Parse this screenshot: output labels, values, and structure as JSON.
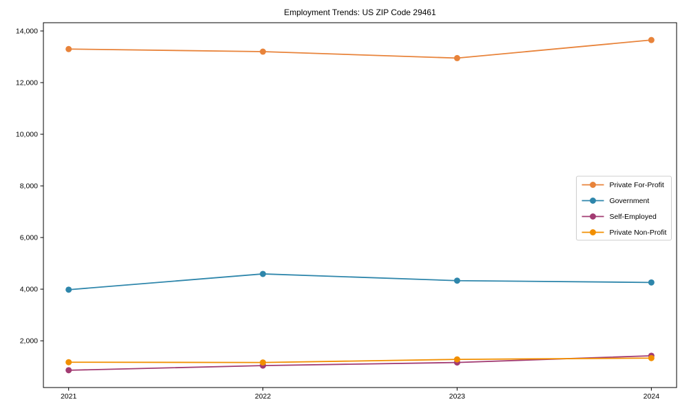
{
  "chart_data": {
    "type": "line",
    "title": "Employment Trends: US ZIP Code 29461",
    "x": [
      2021,
      2022,
      2023,
      2024
    ],
    "categories": [
      "2021",
      "2022",
      "2023",
      "2024"
    ],
    "series": [
      {
        "name": "Private For-Profit",
        "color": "#E8833A",
        "values": [
          13300,
          13200,
          12950,
          13650
        ]
      },
      {
        "name": "Government",
        "color": "#2E86AB",
        "values": [
          3980,
          4590,
          4330,
          4260
        ]
      },
      {
        "name": "Self-Employed",
        "color": "#A23B72",
        "values": [
          860,
          1040,
          1160,
          1420
        ]
      },
      {
        "name": "Private Non-Profit",
        "color": "#F18F01",
        "values": [
          1170,
          1160,
          1280,
          1330
        ]
      }
    ],
    "yticks": [
      2000,
      4000,
      6000,
      8000,
      10000,
      12000,
      14000
    ],
    "ytick_labels": [
      "2,000",
      "4,000",
      "6,000",
      "8,000",
      "10,000",
      "12,000",
      "14,000"
    ],
    "ylim": [
      190,
      14320
    ],
    "xlim": [
      2020.87,
      2024.13
    ],
    "grid": false,
    "legend_position": "center-right",
    "axis_color": "#000000",
    "legend_border_color": "#cccccc"
  }
}
